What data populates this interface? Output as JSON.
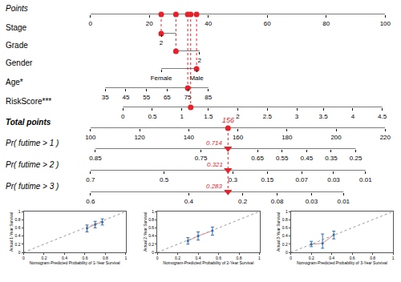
{
  "chart_data": [
    {
      "type": "nomogram",
      "color": "#e8202a",
      "points": {
        "label": "Points",
        "xlim": [
          0,
          100
        ],
        "xticks": [
          0,
          20,
          40,
          60,
          80,
          100
        ]
      },
      "variables": [
        {
          "label": "Stage",
          "extent": [
            24,
            29
          ],
          "ticks": [
            {
              "value": 24,
              "label": "2"
            }
          ],
          "selected": 24
        },
        {
          "label": "Grade",
          "extent": [
            29,
            37
          ],
          "ticks": [
            {
              "value": 37,
              "label": "2"
            }
          ],
          "selected": 29
        },
        {
          "label": "Gender",
          "extent": [
            24,
            36
          ],
          "ticks": [
            {
              "value": 24,
              "label": "Female"
            },
            {
              "value": 36,
              "label": "Male"
            }
          ],
          "selected": 36
        },
        {
          "label": "Age*",
          "extent": [
            5,
            40
          ],
          "ticks": [
            {
              "value": 5,
              "label": "35"
            },
            {
              "value": 12,
              "label": "45"
            },
            {
              "value": 19,
              "label": "55"
            },
            {
              "value": 26,
              "label": "65"
            },
            {
              "value": 33,
              "label": "75"
            },
            {
              "value": 40,
              "label": "85"
            }
          ],
          "selected": 33
        },
        {
          "label": "RiskScore***",
          "extent": [
            11,
            99
          ],
          "ticks": [
            {
              "value": 11,
              "label": "0"
            },
            {
              "value": 21,
              "label": "0.5"
            },
            {
              "value": 31,
              "label": "1"
            },
            {
              "value": 40,
              "label": "1.5"
            },
            {
              "value": 50,
              "label": "2"
            },
            {
              "value": 60,
              "label": "2.5"
            },
            {
              "value": 70,
              "label": "3"
            },
            {
              "value": 79,
              "label": "3.5"
            },
            {
              "value": 89,
              "label": "4"
            },
            {
              "value": 99,
              "label": "4.5"
            }
          ],
          "selected": 34
        }
      ],
      "total": {
        "label": "Total points",
        "xlim": [
          100,
          220
        ],
        "xticks": [
          100,
          120,
          140,
          160,
          180,
          200,
          220
        ],
        "selected": 156
      },
      "probabilities": [
        {
          "label": "Pr( futime > 1 )",
          "extent": [
            102,
            208
          ],
          "ticks": [
            {
              "value": 102,
              "label": "0.85"
            },
            {
              "value": 145,
              "label": "0.75"
            },
            {
              "value": 168,
              "label": "0.65"
            },
            {
              "value": 178,
              "label": "0.55"
            },
            {
              "value": 188,
              "label": "0.45"
            },
            {
              "value": 198,
              "label": "0.35"
            },
            {
              "value": 208,
              "label": "0.25"
            }
          ],
          "value": 0.714
        },
        {
          "label": "Pr( futime > 2 )",
          "extent": [
            100,
            212
          ],
          "ticks": [
            {
              "value": 100,
              "label": "0.7"
            },
            {
              "value": 130,
              "label": "0.5"
            },
            {
              "value": 158,
              "label": "0.3"
            },
            {
              "value": 172,
              "label": "0.15"
            },
            {
              "value": 186,
              "label": "0.07"
            },
            {
              "value": 199,
              "label": "0.03"
            },
            {
              "value": 212,
              "label": "0.01"
            }
          ],
          "value": 0.321
        },
        {
          "label": "Pr( futime > 3 )",
          "extent": [
            100,
            203
          ],
          "ticks": [
            {
              "value": 100,
              "label": "0.6"
            },
            {
              "value": 140,
              "label": "0.4"
            },
            {
              "value": 162,
              "label": "0.2"
            },
            {
              "value": 176,
              "label": "0.08"
            },
            {
              "value": 190,
              "label": "0.03"
            },
            {
              "value": 203,
              "label": "0.01"
            }
          ],
          "value": 0.283
        }
      ]
    },
    {
      "type": "scatter",
      "color": "#2f6fb5",
      "x_label": "Nomogram-Predicted Probability of 1-Year Survival",
      "y_label": "Actual 1-Year Survival",
      "x": [
        0.62,
        0.7,
        0.77
      ],
      "values": [
        0.59,
        0.68,
        0.74
      ],
      "error_plus": [
        0.08,
        0.08,
        0.08
      ],
      "error_minus": [
        0.09,
        0.08,
        0.07
      ],
      "reference": {
        "x": [
          0,
          1
        ],
        "y": [
          0,
          1
        ]
      },
      "xlim": [
        0,
        1
      ],
      "ylim": [
        0,
        1
      ],
      "xticks": [
        0,
        0.2,
        0.4,
        0.6,
        0.8,
        1
      ],
      "yticks": [
        0,
        0.2,
        0.4,
        0.6,
        0.8,
        1
      ]
    },
    {
      "type": "scatter",
      "color": "#2f6fb5",
      "x_label": "Nomogram-Predicted Probability of 2-Year Survival",
      "y_label": "Actual 2-Year Survival",
      "x": [
        0.3,
        0.4,
        0.54
      ],
      "values": [
        0.28,
        0.4,
        0.53
      ],
      "error_plus": [
        0.08,
        0.1,
        0.09
      ],
      "error_minus": [
        0.08,
        0.1,
        0.11
      ],
      "reference": {
        "x": [
          0,
          1
        ],
        "y": [
          0,
          1
        ]
      },
      "xlim": [
        0,
        1
      ],
      "ylim": [
        0,
        1
      ],
      "xticks": [
        0,
        0.2,
        0.4,
        0.6,
        0.8,
        1
      ],
      "yticks": [
        0,
        0.2,
        0.4,
        0.6,
        0.8,
        1
      ]
    },
    {
      "type": "scatter",
      "color": "#2f6fb5",
      "x_label": "Nomogram-Predicted Probability of 3-Year Survival",
      "y_label": "Actual 3-Year Survival",
      "x": [
        0.2,
        0.31,
        0.42
      ],
      "values": [
        0.2,
        0.22,
        0.43
      ],
      "error_plus": [
        0.07,
        0.23,
        0.09
      ],
      "error_minus": [
        0.06,
        0.12,
        0.1
      ],
      "reference": {
        "x": [
          0,
          1
        ],
        "y": [
          0,
          1
        ]
      },
      "xlim": [
        0,
        1
      ],
      "ylim": [
        0,
        1
      ],
      "xticks": [
        0,
        0.2,
        0.4,
        0.6,
        0.8,
        1
      ],
      "yticks": [
        0,
        0.2,
        0.4,
        0.6,
        0.8,
        1
      ]
    }
  ]
}
